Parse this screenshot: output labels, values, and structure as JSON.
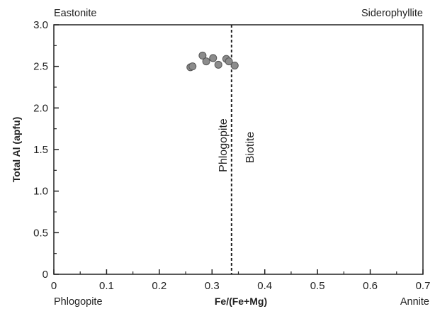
{
  "chart_data": {
    "type": "scatter",
    "title": "",
    "xlabel": "Fe/(Fe+Mg)",
    "ylabel": "Total Al (apfu)",
    "xlim": [
      0,
      0.7
    ],
    "ylim": [
      0,
      3.0
    ],
    "x_ticks": [
      "0",
      "0.1",
      "0.2",
      "0.3",
      "0.4",
      "0.5",
      "0.6",
      "0.7"
    ],
    "y_ticks": [
      "0",
      "0.5",
      "1.0",
      "1.5",
      "2.0",
      "2.5",
      "3.0"
    ],
    "grid": false,
    "points": [
      {
        "x": 0.259,
        "y": 2.49
      },
      {
        "x": 0.263,
        "y": 2.5
      },
      {
        "x": 0.282,
        "y": 2.63
      },
      {
        "x": 0.289,
        "y": 2.56
      },
      {
        "x": 0.302,
        "y": 2.6
      },
      {
        "x": 0.312,
        "y": 2.52
      },
      {
        "x": 0.327,
        "y": 2.59
      },
      {
        "x": 0.332,
        "y": 2.56
      },
      {
        "x": 0.343,
        "y": 2.51
      }
    ],
    "marker_color": "#8c8c8c",
    "divider": {
      "x": 0.337,
      "style": "dashed"
    },
    "corner_labels": {
      "top_left": "Eastonite",
      "top_right": "Siderophyllite",
      "bottom_left": "Phlogopite",
      "bottom_right": "Annite"
    },
    "field_labels": {
      "left": "Phlogopite",
      "right": "Biotite"
    }
  }
}
